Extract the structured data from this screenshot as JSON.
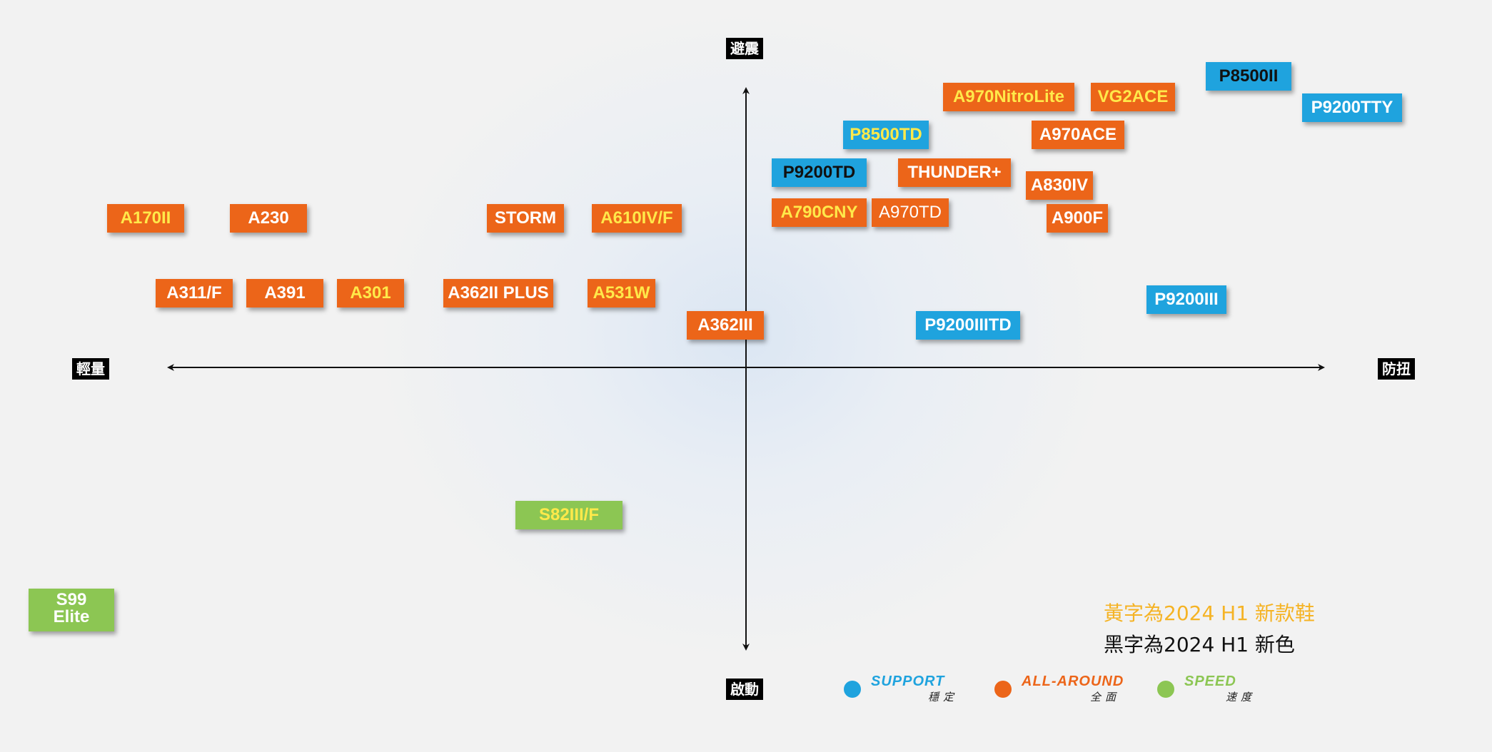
{
  "axes": {
    "top": "避震",
    "bottom": "啟動",
    "left": "輕量",
    "right": "防扭"
  },
  "colors": {
    "support": "#1fa3de",
    "all_round": "#ec6519",
    "speed": "#8cc653",
    "new_shoe_text": "#ffe94a",
    "new_color_text": "#111111",
    "default_text": "#ffffff"
  },
  "shoes": [
    {
      "label": "P8500II",
      "category": "support",
      "text_color": "black"
    },
    {
      "label": "P9200TTY",
      "category": "support",
      "text_color": "white"
    },
    {
      "label": "A970NitroLite",
      "category": "all-round",
      "text_color": "yellow"
    },
    {
      "label": "VG2ACE",
      "category": "all-round",
      "text_color": "yellow"
    },
    {
      "label": "P8500TD",
      "category": "support",
      "text_color": "yellow"
    },
    {
      "label": "A970ACE",
      "category": "all-round",
      "text_color": "white"
    },
    {
      "label": "P9200TD",
      "category": "support",
      "text_color": "black"
    },
    {
      "label": "THUNDER+",
      "category": "all-round",
      "text_color": "white"
    },
    {
      "label": "A830IV",
      "category": "all-round",
      "text_color": "white"
    },
    {
      "label": "A790CNY",
      "category": "all-round",
      "text_color": "yellow"
    },
    {
      "label": "A970TD",
      "category": "all-round",
      "text_color": "white"
    },
    {
      "label": "A900F",
      "category": "all-round",
      "text_color": "white"
    },
    {
      "label": "A170II",
      "category": "all-round",
      "text_color": "yellow"
    },
    {
      "label": "A230",
      "category": "all-round",
      "text_color": "white"
    },
    {
      "label": "STORM",
      "category": "all-round",
      "text_color": "white"
    },
    {
      "label": "A610IV/F",
      "category": "all-round",
      "text_color": "yellow"
    },
    {
      "label": "A311/F",
      "category": "all-round",
      "text_color": "white"
    },
    {
      "label": "A391",
      "category": "all-round",
      "text_color": "white"
    },
    {
      "label": "A301",
      "category": "all-round",
      "text_color": "yellow"
    },
    {
      "label": "A362II PLUS",
      "category": "all-round",
      "text_color": "white"
    },
    {
      "label": "A531W",
      "category": "all-round",
      "text_color": "yellow"
    },
    {
      "label": "P9200III",
      "category": "support",
      "text_color": "white"
    },
    {
      "label": "A362III",
      "category": "all-round",
      "text_color": "white"
    },
    {
      "label": "P9200IIITD",
      "category": "support",
      "text_color": "white"
    },
    {
      "label": "S82III/F",
      "category": "speed",
      "text_color": "yellow"
    },
    {
      "label": "S99\nElite",
      "category": "speed",
      "text_color": "white"
    }
  ],
  "notes": {
    "new_shoe": "黃字為2024 H1 新款鞋",
    "new_color": "黑字為2024 H1 新色"
  },
  "legend": [
    {
      "en": "SUPPORT",
      "zh": "穩定",
      "icon": "circle-dot",
      "color": "#1fa3de"
    },
    {
      "en": "ALL-AROUND",
      "zh": "全面",
      "icon": "circle-dot",
      "color": "#ec6519"
    },
    {
      "en": "SPEED",
      "zh": "速度",
      "icon": "circle-dot",
      "color": "#8cc653"
    }
  ]
}
